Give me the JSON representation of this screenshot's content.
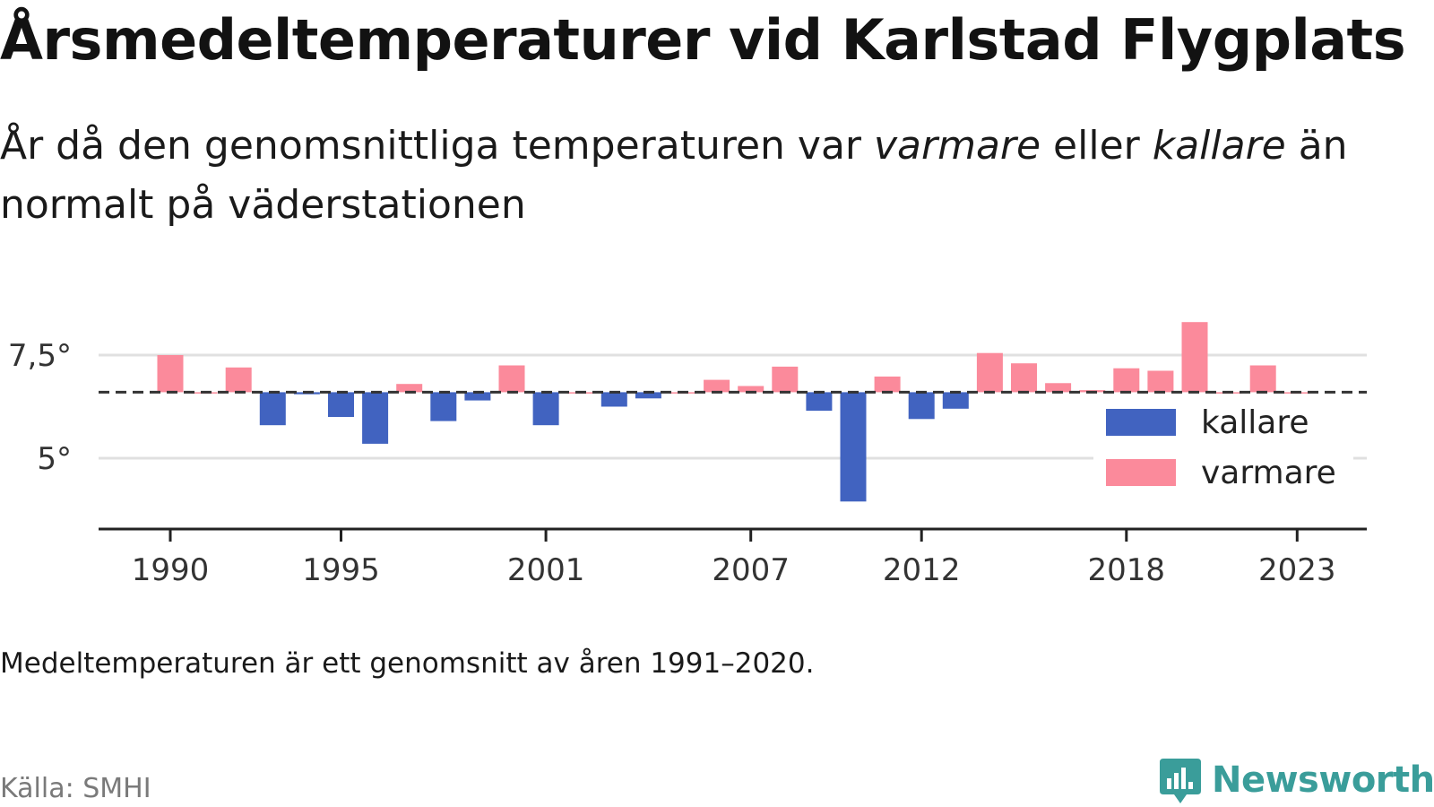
{
  "header": {
    "title": "Årsmedeltemperaturer vid Karlstad Flygplats",
    "subtitle_part1": "År då den genomsnittliga temperaturen var ",
    "subtitle_em1": "varmare",
    "subtitle_part2": " eller ",
    "subtitle_em2": "kallare",
    "subtitle_part3": " än normalt på väderstationen"
  },
  "chart_data": {
    "type": "bar",
    "x": [
      1990,
      1991,
      1992,
      1993,
      1994,
      1995,
      1996,
      1997,
      1998,
      1999,
      2000,
      2001,
      2002,
      2003,
      2004,
      2005,
      2006,
      2007,
      2008,
      2009,
      2010,
      2011,
      2012,
      2013,
      2014,
      2015,
      2016,
      2017,
      2018,
      2019,
      2020,
      2021,
      2022,
      2023
    ],
    "values": [
      7.5,
      6.6,
      7.2,
      5.8,
      6.55,
      6.0,
      5.35,
      6.8,
      5.9,
      6.4,
      7.25,
      5.8,
      6.6,
      6.25,
      6.45,
      6.6,
      6.9,
      6.75,
      7.22,
      6.15,
      3.95,
      6.98,
      5.95,
      6.2,
      7.55,
      7.3,
      6.82,
      6.65,
      7.18,
      7.12,
      8.3,
      6.6,
      7.25,
      6.6
    ],
    "baseline": 6.6,
    "ylim": [
      3.5,
      8.5
    ],
    "yticks": [
      5,
      7.5
    ],
    "ytick_labels": [
      "5°",
      "7,5°"
    ],
    "xticks": [
      1990,
      1995,
      2001,
      2007,
      2012,
      2018,
      2023
    ],
    "xtick_labels": [
      "1990",
      "1995",
      "2001",
      "2007",
      "2012",
      "2018",
      "2023"
    ],
    "legend": [
      {
        "name": "kallare",
        "color": "#4163c0"
      },
      {
        "name": "varmare",
        "color": "#fb8a9b"
      }
    ],
    "legend_position": "right",
    "grid": true
  },
  "footer": {
    "note": "Medeltemperaturen är ett genomsnitt av åren 1991–2020.",
    "source": "Källa: SMHI",
    "brand": "Newsworthy"
  },
  "colors": {
    "cold": "#4163c0",
    "warm": "#fb8a9b",
    "brand": "#3a9d9a",
    "grid": "#e0e0e0",
    "axis": "#222222"
  }
}
